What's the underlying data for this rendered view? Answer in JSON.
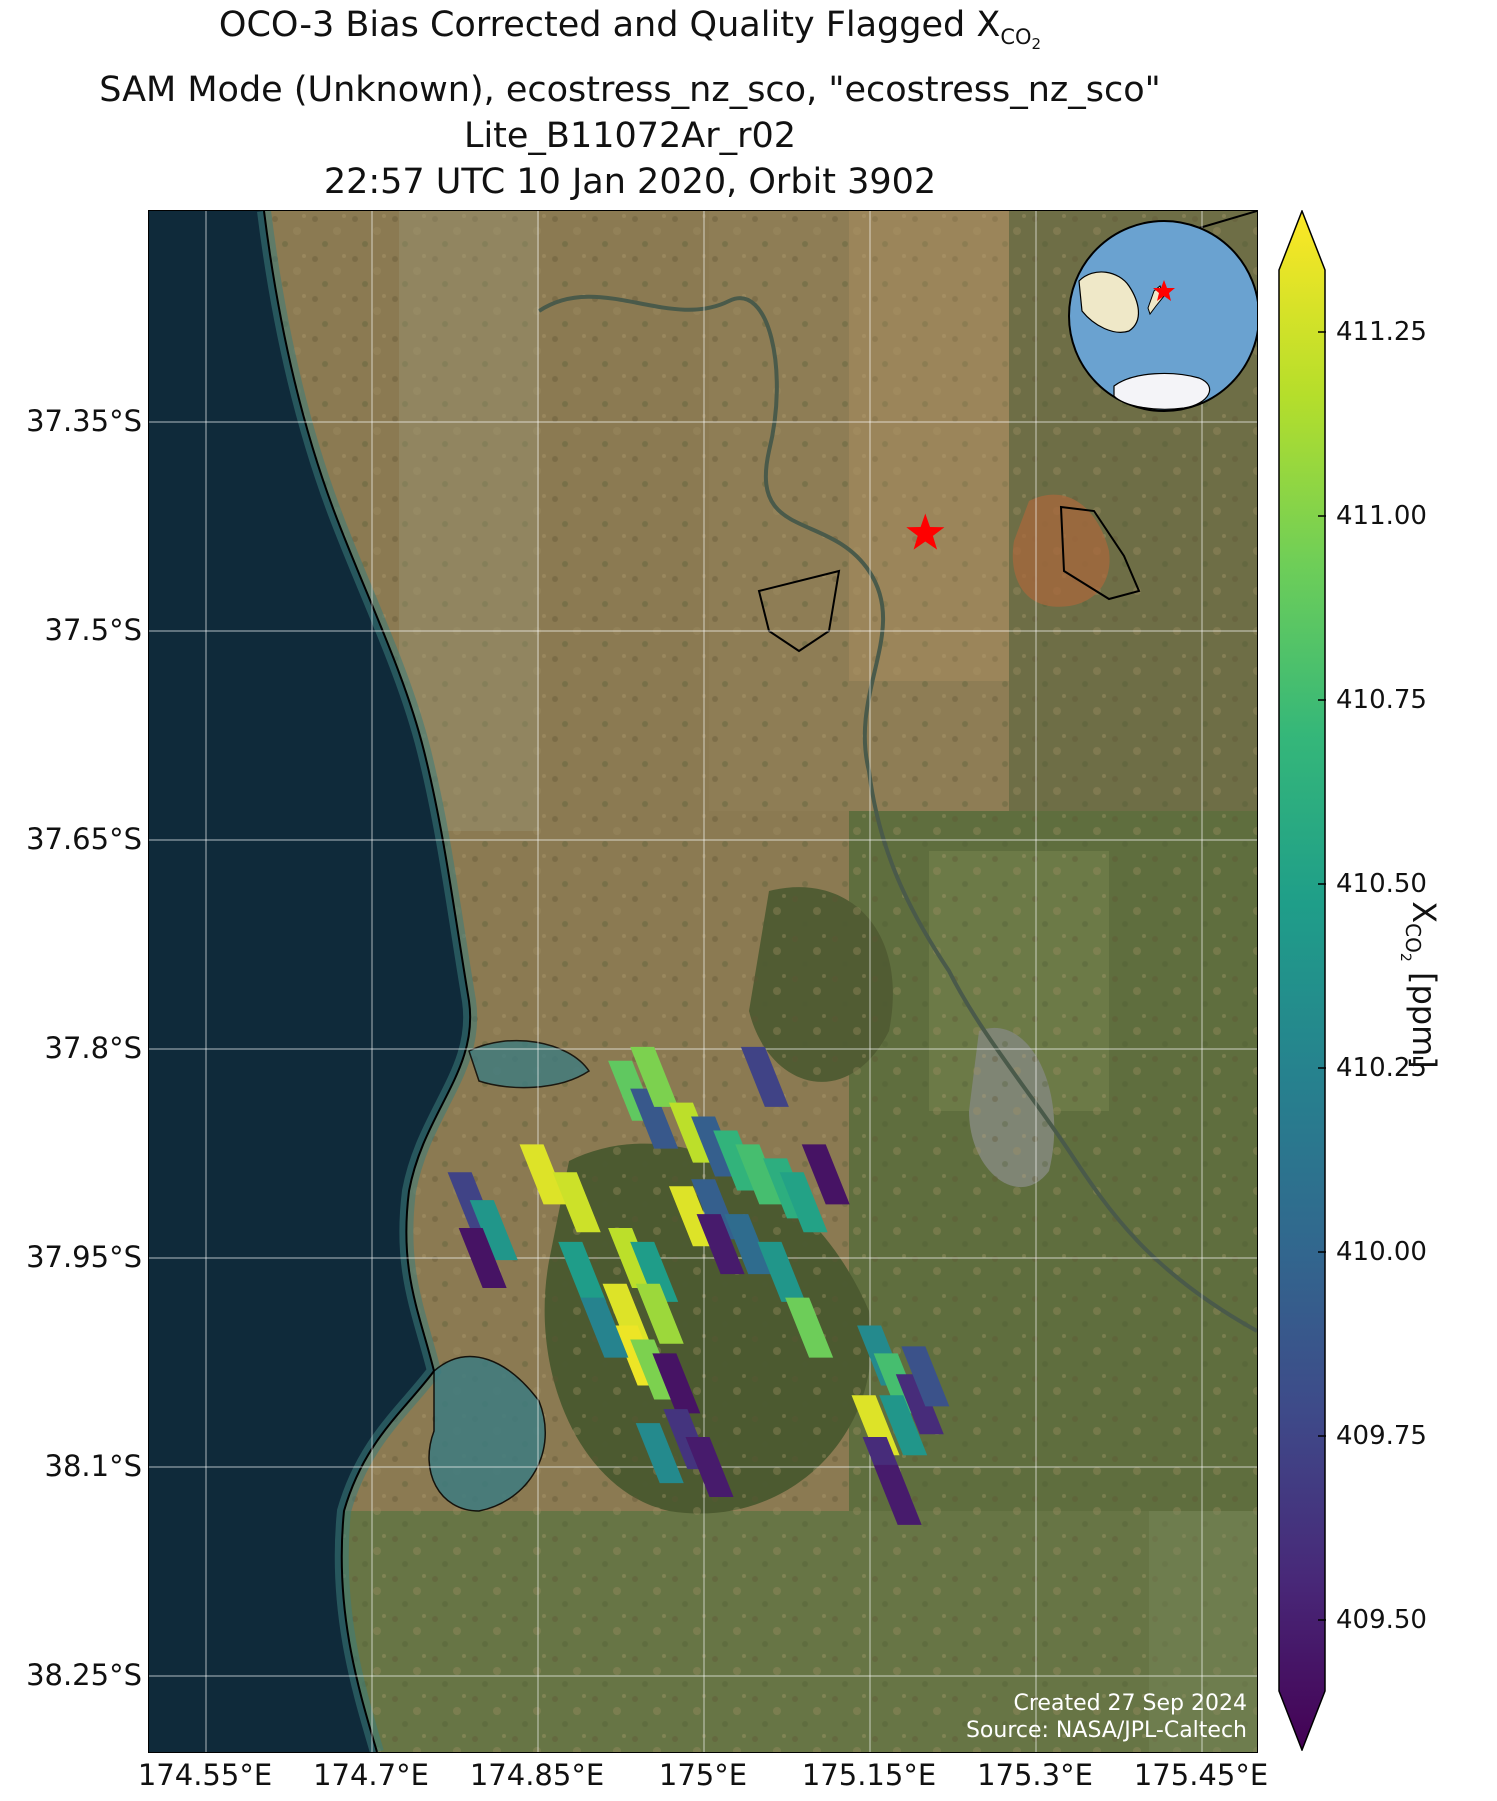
{
  "title": {
    "line1_prefix": "OCO-3 Bias Corrected and Quality Flagged X",
    "line1_sub": "CO",
    "line1_subsub": "2",
    "line2": "SAM Mode (Unknown), ecostress_nz_sco, \"ecostress_nz_sco\"",
    "line3": "Lite_B11072Ar_r02",
    "line4": "22:57 UTC 10 Jan 2020, Orbit 3902"
  },
  "axes": {
    "lat_ticks": [
      "37.35°S",
      "37.5°S",
      "37.65°S",
      "37.8°S",
      "37.95°S",
      "38.1°S",
      "38.25°S"
    ],
    "lon_ticks": [
      "174.55°E",
      "174.7°E",
      "174.85°E",
      "175°E",
      "175.15°E",
      "175.3°E",
      "175.45°E"
    ]
  },
  "credit": {
    "line1": "Created 27 Sep 2024",
    "line2": "Source: NASA/JPL-Caltech"
  },
  "colorbar": {
    "label_prefix": "X",
    "label_sub": "CO",
    "label_subsub": "2",
    "label_suffix": " [ppm]",
    "ticks": [
      "411.25",
      "411.00",
      "410.75",
      "410.50",
      "410.25",
      "410.00",
      "409.75",
      "409.50"
    ],
    "range": [
      409.4,
      411.4
    ],
    "colors": [
      "#440154",
      "#482878",
      "#3e4a89",
      "#31688e",
      "#26828e",
      "#1f9e89",
      "#35b779",
      "#6ece58",
      "#b5de2b",
      "#fde725"
    ]
  },
  "target_marker": {
    "icon": "red-star-icon",
    "color": "#ff0000",
    "lon": 175.2,
    "lat": -37.43
  },
  "inset_globe": {
    "icon": "globe-icon",
    "marker_color": "#ff0000"
  },
  "footprints": [
    {
      "lon": 174.935,
      "lat": -37.83,
      "xco2": 410.9
    },
    {
      "lon": 174.955,
      "lat": -37.85,
      "xco2": 409.95
    },
    {
      "lon": 174.955,
      "lat": -37.82,
      "xco2": 411.0
    },
    {
      "lon": 175.055,
      "lat": -37.82,
      "xco2": 409.8
    },
    {
      "lon": 174.855,
      "lat": -37.89,
      "xco2": 411.3
    },
    {
      "lon": 174.885,
      "lat": -37.91,
      "xco2": 411.25
    },
    {
      "lon": 174.79,
      "lat": -37.91,
      "xco2": 409.8
    },
    {
      "lon": 174.81,
      "lat": -37.93,
      "xco2": 410.45
    },
    {
      "lon": 174.8,
      "lat": -37.95,
      "xco2": 409.5
    },
    {
      "lon": 174.89,
      "lat": -37.96,
      "xco2": 410.5
    },
    {
      "lon": 174.935,
      "lat": -37.95,
      "xco2": 411.2
    },
    {
      "lon": 174.955,
      "lat": -37.96,
      "xco2": 410.5
    },
    {
      "lon": 174.96,
      "lat": -37.99,
      "xco2": 411.1
    },
    {
      "lon": 174.93,
      "lat": -37.99,
      "xco2": 411.3
    },
    {
      "lon": 174.94,
      "lat": -38.02,
      "xco2": 411.35
    },
    {
      "lon": 174.91,
      "lat": -38.0,
      "xco2": 410.3
    },
    {
      "lon": 174.955,
      "lat": -38.03,
      "xco2": 411.0
    },
    {
      "lon": 174.975,
      "lat": -38.04,
      "xco2": 409.5
    },
    {
      "lon": 174.99,
      "lat": -37.86,
      "xco2": 411.2
    },
    {
      "lon": 175.01,
      "lat": -37.87,
      "xco2": 410.0
    },
    {
      "lon": 175.03,
      "lat": -37.88,
      "xco2": 410.7
    },
    {
      "lon": 175.05,
      "lat": -37.89,
      "xco2": 410.8
    },
    {
      "lon": 175.075,
      "lat": -37.9,
      "xco2": 410.65
    },
    {
      "lon": 175.09,
      "lat": -37.91,
      "xco2": 410.55
    },
    {
      "lon": 175.11,
      "lat": -37.89,
      "xco2": 409.5
    },
    {
      "lon": 174.99,
      "lat": -37.92,
      "xco2": 411.3
    },
    {
      "lon": 175.01,
      "lat": -37.915,
      "xco2": 410.0
    },
    {
      "lon": 175.015,
      "lat": -37.94,
      "xco2": 409.55
    },
    {
      "lon": 175.04,
      "lat": -37.94,
      "xco2": 410.1
    },
    {
      "lon": 175.07,
      "lat": -37.96,
      "xco2": 410.45
    },
    {
      "lon": 175.095,
      "lat": -38.0,
      "xco2": 410.95
    },
    {
      "lon": 174.96,
      "lat": -38.09,
      "xco2": 410.35
    },
    {
      "lon": 174.985,
      "lat": -38.08,
      "xco2": 409.7
    },
    {
      "lon": 175.005,
      "lat": -38.1,
      "xco2": 409.55
    },
    {
      "lon": 175.16,
      "lat": -38.02,
      "xco2": 410.35
    },
    {
      "lon": 175.175,
      "lat": -38.04,
      "xco2": 410.8
    },
    {
      "lon": 175.155,
      "lat": -38.07,
      "xco2": 411.3
    },
    {
      "lon": 175.18,
      "lat": -38.07,
      "xco2": 410.45
    },
    {
      "lon": 175.195,
      "lat": -38.055,
      "xco2": 409.65
    },
    {
      "lon": 175.2,
      "lat": -38.035,
      "xco2": 409.9
    },
    {
      "lon": 175.165,
      "lat": -38.1,
      "xco2": 409.65
    },
    {
      "lon": 175.175,
      "lat": -38.12,
      "xco2": 409.55
    }
  ]
}
